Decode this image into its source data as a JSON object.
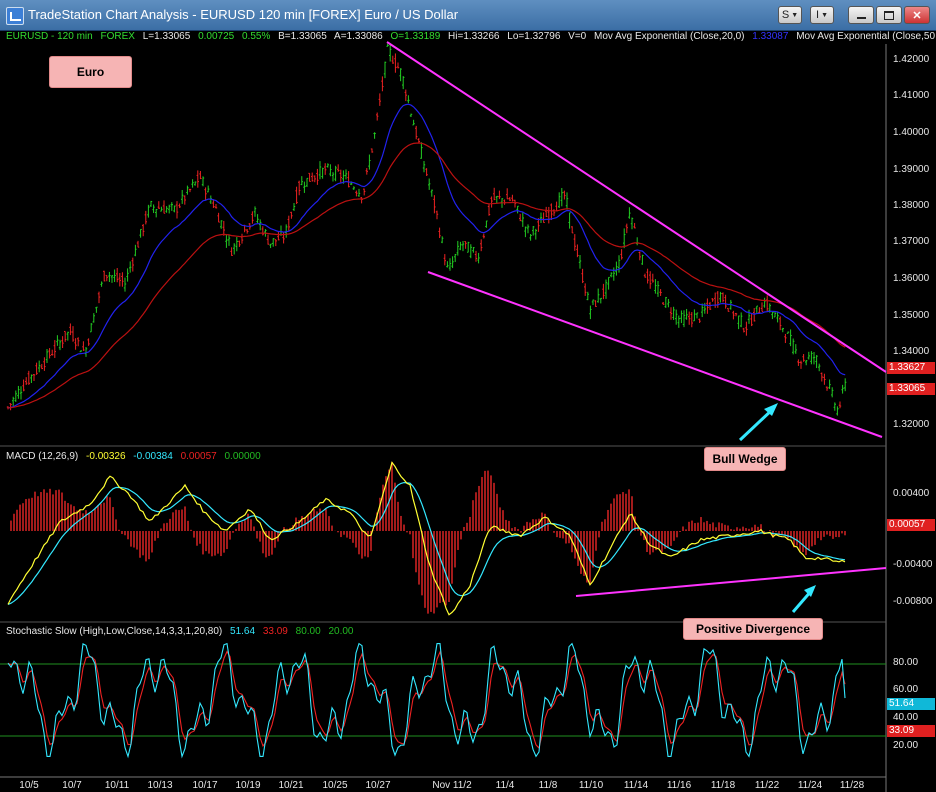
{
  "window": {
    "title": "TradeStation Chart Analysis - EURUSD 120 min [FOREX] Euro / US Dollar",
    "buttons": {
      "s": "S",
      "i": "I"
    }
  },
  "colors": {
    "up": "#22cc22",
    "down": "#ee2222",
    "ema20": "#2222ee",
    "ema50": "#bb1111",
    "trend": "#ff33ff",
    "macd": "#ffff33",
    "signal": "#33e8ff",
    "hist": "#cc2222",
    "stochK": "#33e8ff",
    "stochD": "#ee2222",
    "level": "#1f8f1f"
  },
  "status": {
    "symbol": "EURUSD - 120 min",
    "exchange": "FOREX",
    "last": "L=1.33065",
    "change": "0.00725",
    "change_pct": "0.55%",
    "bid": "B=1.33065",
    "ask": "A=1.33086",
    "open": "O=1.33189",
    "high": "Hi=1.33266",
    "low": "Lo=1.32796",
    "volume": "V=0",
    "ema20_name": "Mov Avg Exponential (Close,20,0)",
    "ema20_value": "1.33087",
    "ema50_name": "Mov Avg Exponential (Close,50"
  },
  "annotations": {
    "euro": "Euro",
    "bull_wedge": "Bull Wedge",
    "positive_divergence": "Positive Divergence"
  },
  "macd": {
    "name": "MACD (12,26,9)",
    "macd_value": "-0.00326",
    "signal_value": "-0.00384",
    "hist_value": "0.00057",
    "zero_value": "0.00000"
  },
  "stochastic": {
    "name": "Stochastic Slow (High,Low,Close,14,3,3,1,20,80)",
    "k_value": "51.64",
    "d_value": "33.09",
    "overbought": "80.00",
    "oversold": "20.00"
  },
  "price_axis": {
    "ticks": [
      "1.42000",
      "1.41000",
      "1.40000",
      "1.39000",
      "1.38000",
      "1.37000",
      "1.36000",
      "1.35000",
      "1.34000",
      "1.32000"
    ],
    "tag_upper": "1.33627",
    "tag_last": "1.33065"
  },
  "macd_axis": {
    "ticks": [
      "0.00400",
      "-0.00400",
      "-0.00800"
    ],
    "tag_hist": "0.00057"
  },
  "stoch_axis": {
    "ticks": [
      "80.00",
      "60.00",
      "40.00",
      "20.00"
    ],
    "tag_k": "51.64",
    "tag_d": "33.09"
  },
  "date_axis": [
    "10/5",
    "10/7",
    "10/11",
    "10/13",
    "10/17",
    "10/19",
    "10/21",
    "10/25",
    "10/27",
    "Nov 11/2",
    "11/4",
    "11/8",
    "11/10",
    "11/14",
    "11/16",
    "11/18",
    "11/22",
    "11/24",
    "11/28"
  ]
}
